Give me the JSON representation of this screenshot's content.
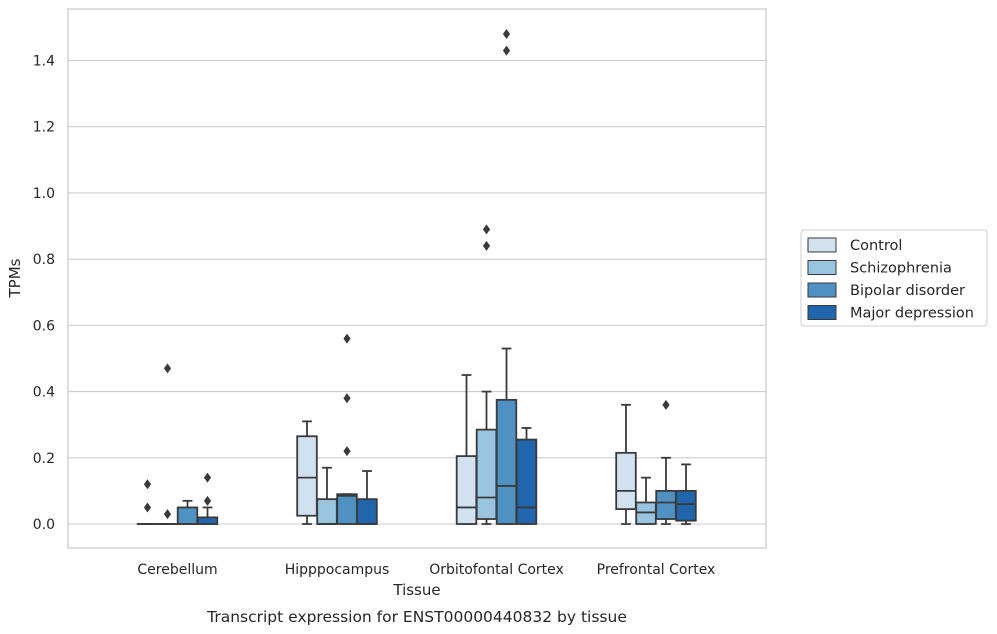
{
  "chart_data": {
    "type": "box",
    "title": "",
    "caption": "Transcript expression for ENST00000440832 by tissue",
    "xlabel": "Tissue",
    "ylabel": "TPMs",
    "ylim": [
      -0.07,
      1.56
    ],
    "yticks": [
      0.0,
      0.2,
      0.4,
      0.6,
      0.8,
      1.0,
      1.2,
      1.4
    ],
    "grid": true,
    "legend_position": "right",
    "categories": [
      "Cerebellum",
      "Hipppocampus",
      "Orbitofontal Cortex",
      "Prefrontal Cortex"
    ],
    "series": [
      {
        "name": "Control",
        "color": "#d1e1f0",
        "boxes": [
          {
            "whislo": 0.0,
            "q1": 0.0,
            "med": 0.0,
            "q3": 0.0,
            "whishi": 0.0,
            "fliers": [
              0.12,
              0.05
            ]
          },
          {
            "whislo": 0.0,
            "q1": 0.025,
            "med": 0.14,
            "q3": 0.265,
            "whishi": 0.31,
            "fliers": []
          },
          {
            "whislo": 0.0,
            "q1": 0.0,
            "med": 0.05,
            "q3": 0.205,
            "whishi": 0.45,
            "fliers": []
          },
          {
            "whislo": 0.0,
            "q1": 0.045,
            "med": 0.1,
            "q3": 0.215,
            "whishi": 0.36,
            "fliers": []
          }
        ]
      },
      {
        "name": "Schizophrenia",
        "color": "#9ac5e0",
        "boxes": [
          {
            "whislo": 0.0,
            "q1": 0.0,
            "med": 0.0,
            "q3": 0.0,
            "whishi": 0.0,
            "fliers": [
              0.47,
              0.03
            ]
          },
          {
            "whislo": 0.0,
            "q1": 0.0,
            "med": 0.0,
            "q3": 0.075,
            "whishi": 0.17,
            "fliers": []
          },
          {
            "whislo": 0.0,
            "q1": 0.015,
            "med": 0.08,
            "q3": 0.285,
            "whishi": 0.4,
            "fliers": [
              0.89,
              0.84
            ]
          },
          {
            "whislo": 0.0,
            "q1": 0.0,
            "med": 0.035,
            "q3": 0.065,
            "whishi": 0.14,
            "fliers": []
          }
        ]
      },
      {
        "name": "Bipolar disorder",
        "color": "#4f91c2",
        "boxes": [
          {
            "whislo": 0.0,
            "q1": 0.0,
            "med": 0.0,
            "q3": 0.05,
            "whishi": 0.07,
            "fliers": []
          },
          {
            "whislo": 0.0,
            "q1": 0.0,
            "med": 0.085,
            "q3": 0.09,
            "whishi": 0.09,
            "fliers": [
              0.56,
              0.38,
              0.22
            ]
          },
          {
            "whislo": 0.0,
            "q1": 0.0,
            "med": 0.115,
            "q3": 0.375,
            "whishi": 0.53,
            "fliers": [
              1.48,
              1.43
            ]
          },
          {
            "whislo": 0.0,
            "q1": 0.015,
            "med": 0.065,
            "q3": 0.1,
            "whishi": 0.2,
            "fliers": [
              0.36
            ]
          }
        ]
      },
      {
        "name": "Major depression",
        "color": "#2166ac",
        "boxes": [
          {
            "whislo": 0.0,
            "q1": 0.0,
            "med": 0.0,
            "q3": 0.02,
            "whishi": 0.05,
            "fliers": [
              0.14,
              0.07
            ]
          },
          {
            "whislo": 0.0,
            "q1": 0.0,
            "med": 0.0,
            "q3": 0.075,
            "whishi": 0.16,
            "fliers": []
          },
          {
            "whislo": 0.0,
            "q1": 0.0,
            "med": 0.05,
            "q3": 0.255,
            "whishi": 0.29,
            "fliers": []
          },
          {
            "whislo": 0.0,
            "q1": 0.01,
            "med": 0.06,
            "q3": 0.1,
            "whishi": 0.18,
            "fliers": []
          }
        ]
      }
    ]
  },
  "colors": {
    "grid": "#cccccc",
    "frame": "#cccccc",
    "line": "#3a3a3a"
  }
}
